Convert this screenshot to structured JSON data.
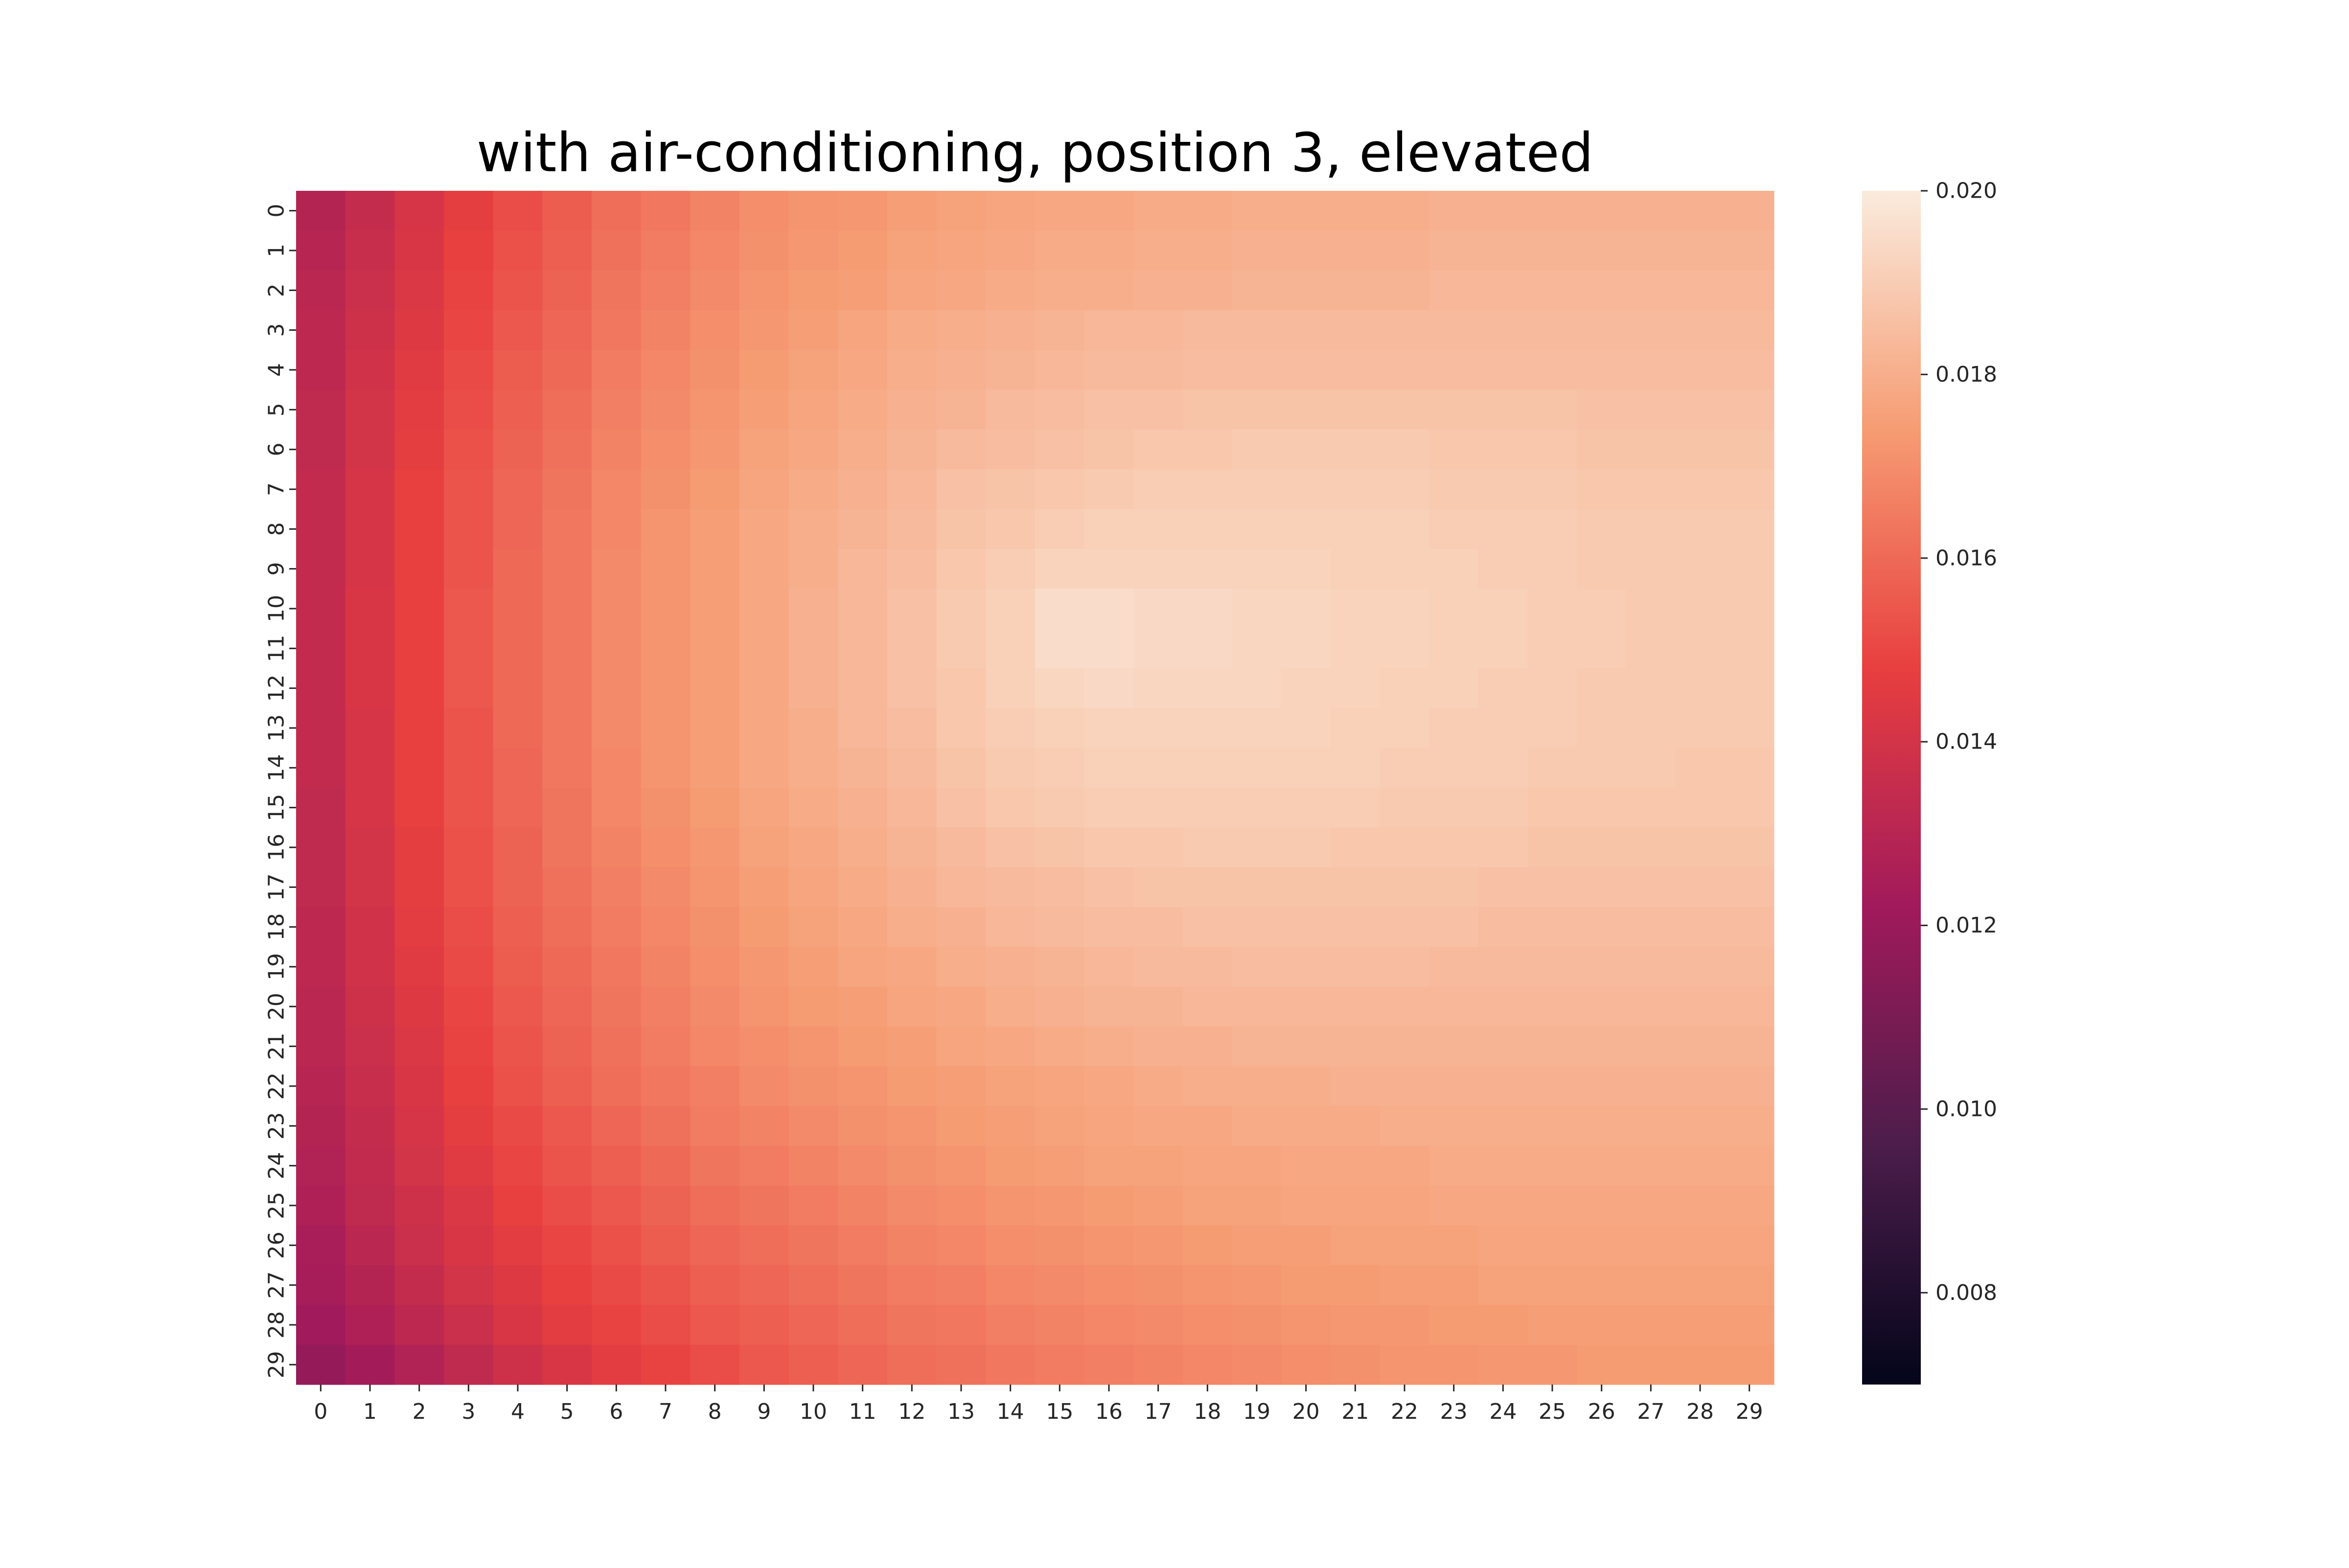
{
  "chart_data": {
    "type": "heatmap",
    "title": "with air-conditioning, position 3, elevated",
    "xlabel": "",
    "ylabel": "",
    "x_ticks": [
      "0",
      "1",
      "2",
      "3",
      "4",
      "5",
      "6",
      "7",
      "8",
      "9",
      "10",
      "11",
      "12",
      "13",
      "14",
      "15",
      "16",
      "17",
      "18",
      "19",
      "20",
      "21",
      "22",
      "23",
      "24",
      "25",
      "26",
      "27",
      "28",
      "29"
    ],
    "y_ticks": [
      "0",
      "1",
      "2",
      "3",
      "4",
      "5",
      "6",
      "7",
      "8",
      "9",
      "10",
      "11",
      "12",
      "13",
      "14",
      "15",
      "16",
      "17",
      "18",
      "19",
      "20",
      "21",
      "22",
      "23",
      "24",
      "25",
      "26",
      "27",
      "28",
      "29"
    ],
    "colormap": "rocket",
    "color_range": [
      0.007,
      0.02
    ],
    "colorbar_ticks": [
      "0.008",
      "0.010",
      "0.012",
      "0.014",
      "0.016",
      "0.018",
      "0.020"
    ],
    "colorbar_tick_values": [
      0.008,
      0.01,
      0.012,
      0.014,
      0.016,
      0.018,
      0.02
    ],
    "grid": false,
    "colorbar_placement": "right",
    "colormap_stops": [
      "#03051a",
      "#4c1d4b",
      "#a11a5b",
      "#e83f3f",
      "#f69c73",
      "#faebdd"
    ],
    "values": [
      [
        0.0129,
        0.0135,
        0.0141,
        0.0147,
        0.0152,
        0.0156,
        0.0161,
        0.0164,
        0.0167,
        0.017,
        0.0172,
        0.0173,
        0.0175,
        0.0176,
        0.0177,
        0.0178,
        0.0178,
        0.0179,
        0.0179,
        0.018,
        0.018,
        0.018,
        0.018,
        0.0181,
        0.0181,
        0.0181,
        0.0181,
        0.0181,
        0.0181,
        0.0181
      ],
      [
        0.013,
        0.0136,
        0.0142,
        0.0148,
        0.0153,
        0.0157,
        0.0162,
        0.0165,
        0.0168,
        0.0171,
        0.0173,
        0.0174,
        0.0176,
        0.0177,
        0.0178,
        0.0179,
        0.0179,
        0.018,
        0.018,
        0.0181,
        0.0181,
        0.0181,
        0.0181,
        0.0182,
        0.0182,
        0.0182,
        0.0182,
        0.0182,
        0.0182,
        0.0182
      ],
      [
        0.0131,
        0.0137,
        0.0143,
        0.0149,
        0.0154,
        0.0158,
        0.0163,
        0.0166,
        0.0169,
        0.0172,
        0.0174,
        0.0175,
        0.0177,
        0.0178,
        0.0179,
        0.018,
        0.018,
        0.0181,
        0.0181,
        0.0182,
        0.0182,
        0.0182,
        0.0182,
        0.0183,
        0.0183,
        0.0183,
        0.0183,
        0.0183,
        0.0183,
        0.0183
      ],
      [
        0.0132,
        0.0138,
        0.0144,
        0.015,
        0.0155,
        0.0159,
        0.0164,
        0.0167,
        0.017,
        0.0173,
        0.0175,
        0.0177,
        0.0179,
        0.018,
        0.0181,
        0.0182,
        0.0183,
        0.0183,
        0.0184,
        0.0184,
        0.0184,
        0.0184,
        0.0184,
        0.0184,
        0.0184,
        0.0184,
        0.0184,
        0.0184,
        0.0184,
        0.0184
      ],
      [
        0.0132,
        0.0139,
        0.0145,
        0.0151,
        0.0156,
        0.016,
        0.0165,
        0.0168,
        0.0171,
        0.0174,
        0.0176,
        0.0178,
        0.018,
        0.0181,
        0.0182,
        0.0183,
        0.0184,
        0.0184,
        0.0185,
        0.0185,
        0.0185,
        0.0185,
        0.0185,
        0.0185,
        0.0185,
        0.0185,
        0.0185,
        0.0185,
        0.0185,
        0.0185
      ],
      [
        0.0133,
        0.014,
        0.0146,
        0.0152,
        0.0157,
        0.0161,
        0.0166,
        0.0169,
        0.0172,
        0.0175,
        0.0177,
        0.0179,
        0.0181,
        0.0182,
        0.0184,
        0.0185,
        0.0186,
        0.0186,
        0.0187,
        0.0187,
        0.0187,
        0.0187,
        0.0187,
        0.0187,
        0.0187,
        0.0187,
        0.0186,
        0.0186,
        0.0186,
        0.0186
      ],
      [
        0.0133,
        0.014,
        0.0147,
        0.0153,
        0.0158,
        0.0162,
        0.0167,
        0.017,
        0.0173,
        0.0176,
        0.0178,
        0.018,
        0.0182,
        0.0184,
        0.0185,
        0.0186,
        0.0187,
        0.0188,
        0.0188,
        0.0189,
        0.0189,
        0.0189,
        0.0189,
        0.0188,
        0.0188,
        0.0188,
        0.0187,
        0.0187,
        0.0187,
        0.0187
      ],
      [
        0.0134,
        0.0141,
        0.0148,
        0.0154,
        0.0159,
        0.0163,
        0.0168,
        0.0171,
        0.0174,
        0.0177,
        0.0179,
        0.0181,
        0.0183,
        0.0186,
        0.0187,
        0.0188,
        0.0189,
        0.019,
        0.019,
        0.019,
        0.019,
        0.019,
        0.019,
        0.0189,
        0.0189,
        0.0189,
        0.0188,
        0.0188,
        0.0188,
        0.0188
      ],
      [
        0.0134,
        0.0141,
        0.0148,
        0.0154,
        0.0159,
        0.0164,
        0.0168,
        0.0172,
        0.0175,
        0.0178,
        0.018,
        0.0182,
        0.0184,
        0.0187,
        0.0188,
        0.019,
        0.0191,
        0.0191,
        0.0191,
        0.0191,
        0.0191,
        0.0191,
        0.0191,
        0.019,
        0.019,
        0.019,
        0.0189,
        0.0189,
        0.0189,
        0.0189
      ],
      [
        0.0134,
        0.0141,
        0.0148,
        0.0154,
        0.016,
        0.0164,
        0.0169,
        0.0172,
        0.0175,
        0.0178,
        0.018,
        0.0183,
        0.0185,
        0.0188,
        0.019,
        0.0192,
        0.0192,
        0.0192,
        0.0192,
        0.0192,
        0.0192,
        0.0191,
        0.0191,
        0.0191,
        0.019,
        0.019,
        0.0189,
        0.0189,
        0.0189,
        0.0189
      ],
      [
        0.0134,
        0.0142,
        0.0148,
        0.0155,
        0.016,
        0.0164,
        0.0169,
        0.0172,
        0.0175,
        0.0178,
        0.0181,
        0.0183,
        0.0186,
        0.0189,
        0.0191,
        0.0195,
        0.0195,
        0.0194,
        0.0194,
        0.0193,
        0.0193,
        0.0192,
        0.0192,
        0.0191,
        0.0191,
        0.019,
        0.019,
        0.0189,
        0.0189,
        0.0189
      ],
      [
        0.0134,
        0.0142,
        0.0148,
        0.0155,
        0.016,
        0.0164,
        0.0169,
        0.0172,
        0.0175,
        0.0178,
        0.0181,
        0.0183,
        0.0186,
        0.0189,
        0.0191,
        0.0195,
        0.0195,
        0.0194,
        0.0194,
        0.0193,
        0.0193,
        0.0192,
        0.0192,
        0.0191,
        0.0191,
        0.019,
        0.019,
        0.0189,
        0.0189,
        0.0189
      ],
      [
        0.0134,
        0.0142,
        0.0148,
        0.0155,
        0.016,
        0.0164,
        0.0169,
        0.0172,
        0.0175,
        0.0178,
        0.0181,
        0.0183,
        0.0186,
        0.0188,
        0.0191,
        0.0193,
        0.0194,
        0.0193,
        0.0193,
        0.0193,
        0.0192,
        0.0192,
        0.0191,
        0.0191,
        0.019,
        0.019,
        0.0189,
        0.0189,
        0.0189,
        0.0189
      ],
      [
        0.0134,
        0.0141,
        0.0148,
        0.0154,
        0.016,
        0.0164,
        0.0169,
        0.0172,
        0.0175,
        0.0178,
        0.018,
        0.0183,
        0.0185,
        0.0188,
        0.019,
        0.0191,
        0.0192,
        0.0192,
        0.0192,
        0.0192,
        0.0192,
        0.0191,
        0.0191,
        0.019,
        0.019,
        0.019,
        0.0189,
        0.0189,
        0.0189,
        0.0189
      ],
      [
        0.0134,
        0.0141,
        0.0148,
        0.0154,
        0.0159,
        0.0164,
        0.0168,
        0.0172,
        0.0175,
        0.0178,
        0.018,
        0.0182,
        0.0184,
        0.0187,
        0.0189,
        0.019,
        0.0191,
        0.0191,
        0.0191,
        0.0191,
        0.0191,
        0.0191,
        0.019,
        0.019,
        0.019,
        0.0189,
        0.0189,
        0.0189,
        0.0188,
        0.0188
      ],
      [
        0.0133,
        0.0141,
        0.0148,
        0.0154,
        0.0159,
        0.0163,
        0.0168,
        0.0171,
        0.0174,
        0.0177,
        0.0179,
        0.0181,
        0.0183,
        0.0186,
        0.0188,
        0.0189,
        0.019,
        0.019,
        0.019,
        0.019,
        0.019,
        0.019,
        0.0189,
        0.0189,
        0.0189,
        0.0188,
        0.0188,
        0.0188,
        0.0188,
        0.0188
      ],
      [
        0.0133,
        0.014,
        0.0147,
        0.0153,
        0.0158,
        0.0163,
        0.0167,
        0.017,
        0.0173,
        0.0176,
        0.0178,
        0.018,
        0.0182,
        0.0184,
        0.0186,
        0.0187,
        0.0188,
        0.0188,
        0.0189,
        0.0189,
        0.0189,
        0.0188,
        0.0188,
        0.0188,
        0.0188,
        0.0187,
        0.0187,
        0.0187,
        0.0187,
        0.0187
      ],
      [
        0.0133,
        0.014,
        0.0147,
        0.0153,
        0.0158,
        0.0162,
        0.0166,
        0.0169,
        0.0172,
        0.0175,
        0.0177,
        0.0179,
        0.0181,
        0.0183,
        0.0184,
        0.0185,
        0.0186,
        0.0187,
        0.0187,
        0.0187,
        0.0187,
        0.0187,
        0.0187,
        0.0187,
        0.0186,
        0.0186,
        0.0186,
        0.0186,
        0.0186,
        0.0186
      ],
      [
        0.0132,
        0.0139,
        0.0146,
        0.0152,
        0.0157,
        0.0161,
        0.0165,
        0.0168,
        0.0171,
        0.0174,
        0.0176,
        0.0178,
        0.018,
        0.0181,
        0.0183,
        0.0184,
        0.0185,
        0.0185,
        0.0186,
        0.0186,
        0.0186,
        0.0186,
        0.0186,
        0.0186,
        0.0185,
        0.0185,
        0.0185,
        0.0185,
        0.0185,
        0.0185
      ],
      [
        0.0132,
        0.0139,
        0.0145,
        0.0151,
        0.0156,
        0.016,
        0.0164,
        0.0167,
        0.017,
        0.0173,
        0.0175,
        0.0177,
        0.0178,
        0.018,
        0.0181,
        0.0182,
        0.0183,
        0.0184,
        0.0184,
        0.0185,
        0.0185,
        0.0185,
        0.0185,
        0.0184,
        0.0184,
        0.0184,
        0.0184,
        0.0184,
        0.0184,
        0.0184
      ],
      [
        0.0131,
        0.0138,
        0.0144,
        0.015,
        0.0155,
        0.0159,
        0.0163,
        0.0166,
        0.0169,
        0.0172,
        0.0174,
        0.0175,
        0.0177,
        0.0178,
        0.018,
        0.0181,
        0.0182,
        0.0182,
        0.0183,
        0.0183,
        0.0183,
        0.0183,
        0.0183,
        0.0183,
        0.0183,
        0.0183,
        0.0183,
        0.0183,
        0.0183,
        0.0183
      ],
      [
        0.0131,
        0.0137,
        0.0143,
        0.0149,
        0.0154,
        0.0158,
        0.0162,
        0.0165,
        0.0168,
        0.017,
        0.0172,
        0.0174,
        0.0175,
        0.0177,
        0.0178,
        0.0179,
        0.018,
        0.0181,
        0.0181,
        0.0182,
        0.0182,
        0.0182,
        0.0182,
        0.0182,
        0.0182,
        0.0182,
        0.0182,
        0.0182,
        0.0182,
        0.0182
      ],
      [
        0.013,
        0.0136,
        0.0142,
        0.0148,
        0.0153,
        0.0157,
        0.0161,
        0.0164,
        0.0166,
        0.0169,
        0.0171,
        0.0172,
        0.0174,
        0.0175,
        0.0176,
        0.0177,
        0.0178,
        0.0179,
        0.018,
        0.018,
        0.018,
        0.0181,
        0.0181,
        0.0181,
        0.0181,
        0.0181,
        0.0181,
        0.0181,
        0.0181,
        0.0181
      ],
      [
        0.0129,
        0.0135,
        0.0141,
        0.0147,
        0.0151,
        0.0155,
        0.0159,
        0.0162,
        0.0165,
        0.0167,
        0.0169,
        0.0171,
        0.0172,
        0.0174,
        0.0175,
        0.0176,
        0.0177,
        0.0178,
        0.0178,
        0.0179,
        0.0179,
        0.0179,
        0.018,
        0.018,
        0.018,
        0.018,
        0.018,
        0.018,
        0.018,
        0.018
      ],
      [
        0.0128,
        0.0134,
        0.014,
        0.0145,
        0.015,
        0.0154,
        0.0157,
        0.016,
        0.0163,
        0.0165,
        0.0167,
        0.0169,
        0.0171,
        0.0172,
        0.0174,
        0.0175,
        0.0176,
        0.0176,
        0.0177,
        0.0177,
        0.0178,
        0.0178,
        0.0178,
        0.0179,
        0.0179,
        0.0179,
        0.0179,
        0.0179,
        0.0179,
        0.0179
      ],
      [
        0.0127,
        0.0133,
        0.0138,
        0.0143,
        0.0148,
        0.0152,
        0.0155,
        0.0158,
        0.0161,
        0.0163,
        0.0165,
        0.0167,
        0.0169,
        0.017,
        0.0172,
        0.0173,
        0.0174,
        0.0175,
        0.0176,
        0.0176,
        0.0177,
        0.0177,
        0.0177,
        0.0178,
        0.0178,
        0.0178,
        0.0178,
        0.0178,
        0.0178,
        0.0178
      ],
      [
        0.0125,
        0.0131,
        0.0137,
        0.0142,
        0.0146,
        0.015,
        0.0153,
        0.0156,
        0.0159,
        0.0161,
        0.0163,
        0.0165,
        0.0167,
        0.0168,
        0.017,
        0.0171,
        0.0172,
        0.0173,
        0.0174,
        0.0175,
        0.0175,
        0.0176,
        0.0176,
        0.0176,
        0.0177,
        0.0177,
        0.0177,
        0.0177,
        0.0177,
        0.0177
      ],
      [
        0.0124,
        0.0129,
        0.0135,
        0.014,
        0.0144,
        0.0148,
        0.0151,
        0.0154,
        0.0157,
        0.0159,
        0.0161,
        0.0163,
        0.0165,
        0.0166,
        0.0168,
        0.0169,
        0.017,
        0.0171,
        0.0172,
        0.0173,
        0.0174,
        0.0174,
        0.0175,
        0.0175,
        0.0176,
        0.0176,
        0.0176,
        0.0176,
        0.0176,
        0.0176
      ],
      [
        0.0122,
        0.0127,
        0.0132,
        0.0137,
        0.0142,
        0.0146,
        0.0149,
        0.0152,
        0.0155,
        0.0157,
        0.0159,
        0.0161,
        0.0163,
        0.0164,
        0.0166,
        0.0167,
        0.0168,
        0.0169,
        0.017,
        0.0171,
        0.0172,
        0.0173,
        0.0173,
        0.0174,
        0.0174,
        0.0175,
        0.0175,
        0.0175,
        0.0175,
        0.0175
      ],
      [
        0.0118,
        0.0123,
        0.0128,
        0.0133,
        0.0138,
        0.0142,
        0.0146,
        0.0149,
        0.0152,
        0.0155,
        0.0157,
        0.0159,
        0.0161,
        0.0162,
        0.0164,
        0.0165,
        0.0166,
        0.0167,
        0.0168,
        0.0169,
        0.017,
        0.0171,
        0.0172,
        0.0172,
        0.0173,
        0.0173,
        0.0174,
        0.0174,
        0.0174,
        0.0174
      ]
    ]
  }
}
